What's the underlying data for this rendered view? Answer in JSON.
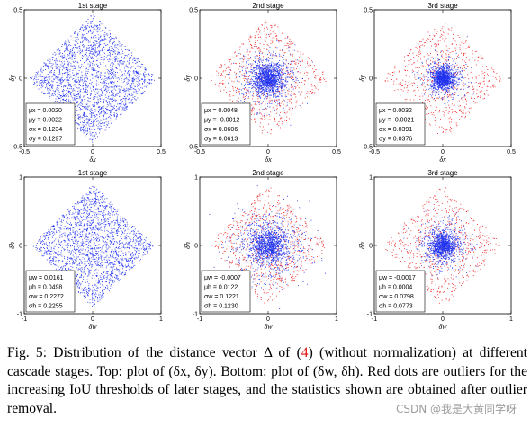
{
  "panels": [
    {
      "id": "top-1",
      "title": "1st stage",
      "xlabel": "δx",
      "ylabel": "δy",
      "xticks": [
        "-0.5",
        "0",
        "0.5"
      ],
      "yticks": [
        "0.5",
        "0",
        "-0.5"
      ],
      "stats": [
        "μx = 0.0020",
        "μy = 0.0022",
        "σx = 0.1234",
        "σy = 0.1297"
      ]
    },
    {
      "id": "top-2",
      "title": "2nd stage",
      "xlabel": "δx",
      "ylabel": "δy",
      "xticks": [
        "-0.5",
        "0",
        "0.5"
      ],
      "yticks": [
        "0.5",
        "0",
        "-0.5"
      ],
      "stats": [
        "μx = 0.0048",
        "μy = -0.0012",
        "σx = 0.0606",
        "σy = 0.0613"
      ]
    },
    {
      "id": "top-3",
      "title": "3rd stage",
      "xlabel": "δx",
      "ylabel": "δy",
      "xticks": [
        "-0.5",
        "0",
        "0.5"
      ],
      "yticks": [
        "0.5",
        "0",
        "-0.5"
      ],
      "stats": [
        "μx = 0.0032",
        "μy = -0.0021",
        "σx = 0.0391",
        "σy = 0.0376"
      ]
    },
    {
      "id": "bottom-1",
      "title": "1st stage",
      "xlabel": "δw",
      "ylabel": "δh",
      "xticks": [
        "-1",
        "0",
        "1"
      ],
      "yticks": [
        "1",
        "0",
        "-1"
      ],
      "stats": [
        "μw = 0.0161",
        "μh = 0.0498",
        "σw = 0.2272",
        "σh = 0.2255"
      ]
    },
    {
      "id": "bottom-2",
      "title": "2nd stage",
      "xlabel": "δw",
      "ylabel": "δh",
      "xticks": [
        "-1",
        "0",
        "1"
      ],
      "yticks": [
        "1",
        "0",
        "-1"
      ],
      "stats": [
        "μw = -0.0007",
        "μh = 0.0122",
        "σw = 0.1221",
        "σh = 0.1230"
      ]
    },
    {
      "id": "bottom-3",
      "title": "3rd stage",
      "xlabel": "δw",
      "ylabel": "δh",
      "xticks": [
        "-1",
        "0",
        "1"
      ],
      "yticks": [
        "1",
        "0",
        "-1"
      ],
      "stats": [
        "μw = -0.0017",
        "μh = 0.0004",
        "σw = 0.0798",
        "σh = 0.0773"
      ]
    }
  ],
  "colors": {
    "inlier": "#2233ee",
    "outlier": "#ee2222"
  },
  "caption": {
    "prefix": "Fig. 5: Distribution of the distance vector Δ of (",
    "ref": "4",
    "suffix": ") (without normalization) at different cascade stages. Top: plot of (δx, δy). Bottom: plot of (δw, δh). Red dots are outliers for the increasing IoU thresholds of later stages, and the statistics shown are obtained after outlier removal."
  },
  "watermark": "CSDN @我是大黄同学呀"
}
